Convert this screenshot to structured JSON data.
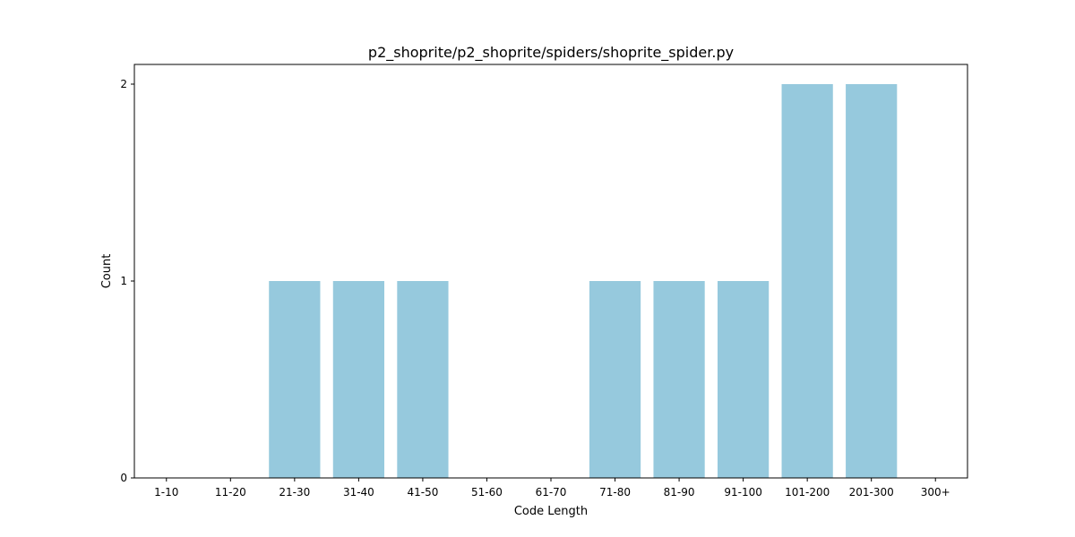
{
  "chart_data": {
    "type": "bar",
    "title": "p2_shoprite/p2_shoprite/spiders/shoprite_spider.py",
    "xlabel": "Code Length",
    "ylabel": "Count",
    "categories": [
      "1-10",
      "11-20",
      "21-30",
      "31-40",
      "41-50",
      "51-60",
      "61-70",
      "71-80",
      "81-90",
      "91-100",
      "101-200",
      "201-300",
      "300+"
    ],
    "values": [
      0,
      0,
      1,
      1,
      1,
      0,
      0,
      1,
      1,
      1,
      2,
      2,
      0
    ],
    "yticks": [
      "0",
      "1",
      "2"
    ],
    "ylim": [
      0,
      2.1
    ],
    "grid": false,
    "legend": "none",
    "bar_color": "#96c9dd"
  }
}
